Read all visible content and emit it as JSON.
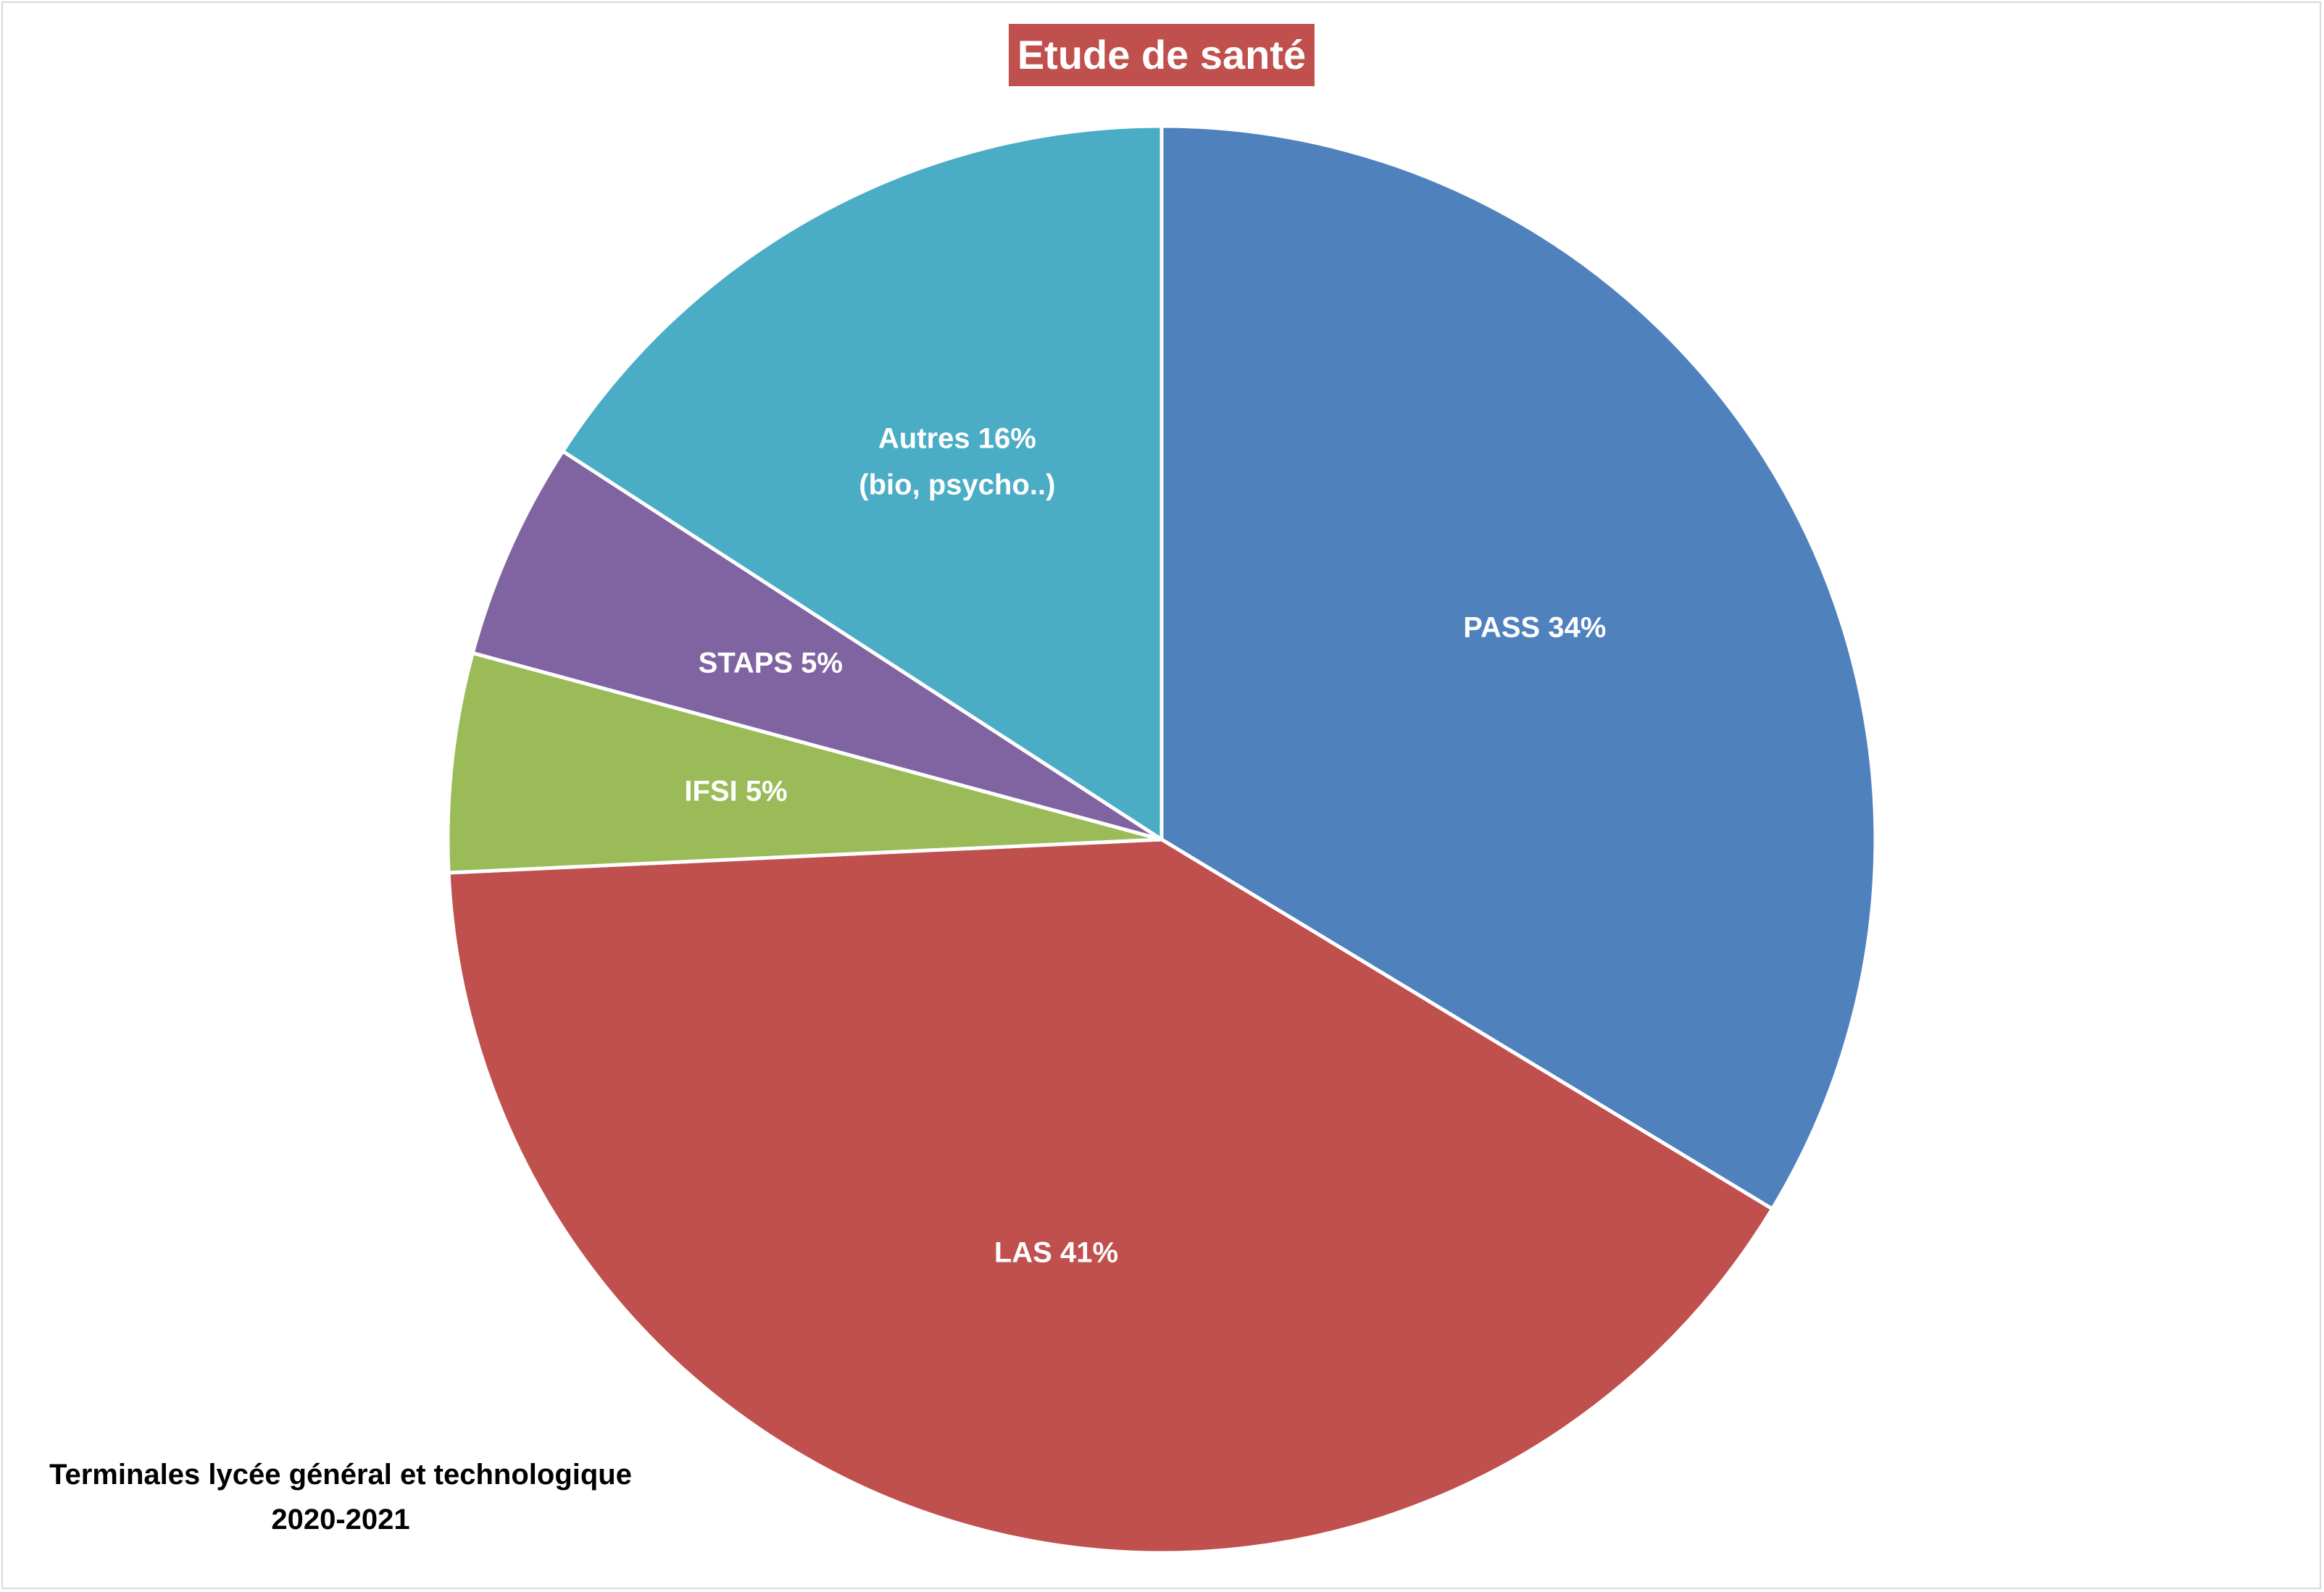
{
  "chart_data": {
    "type": "pie",
    "title": "Etude de santé",
    "colors": {
      "title_background": "#c0504d",
      "slice_border": "#ffffff"
    },
    "slices": [
      {
        "label_lines": [
          "PASS 34%"
        ],
        "value": 34,
        "color": "#4f81bd"
      },
      {
        "label_lines": [
          "LAS 41%"
        ],
        "value": 41,
        "color": "#c0504d"
      },
      {
        "label_lines": [
          "IFSI 5%"
        ],
        "value": 5,
        "color": "#9bbb59"
      },
      {
        "label_lines": [
          "STAPS 5%"
        ],
        "value": 5,
        "color": "#8064a2"
      },
      {
        "label_lines": [
          "Autres 16%",
          "(bio, psycho..)"
        ],
        "value": 16,
        "color": "#4bacc6"
      }
    ]
  },
  "footnote": {
    "line1": "Terminales lycée général et technologique",
    "line2": "2020-2021"
  }
}
